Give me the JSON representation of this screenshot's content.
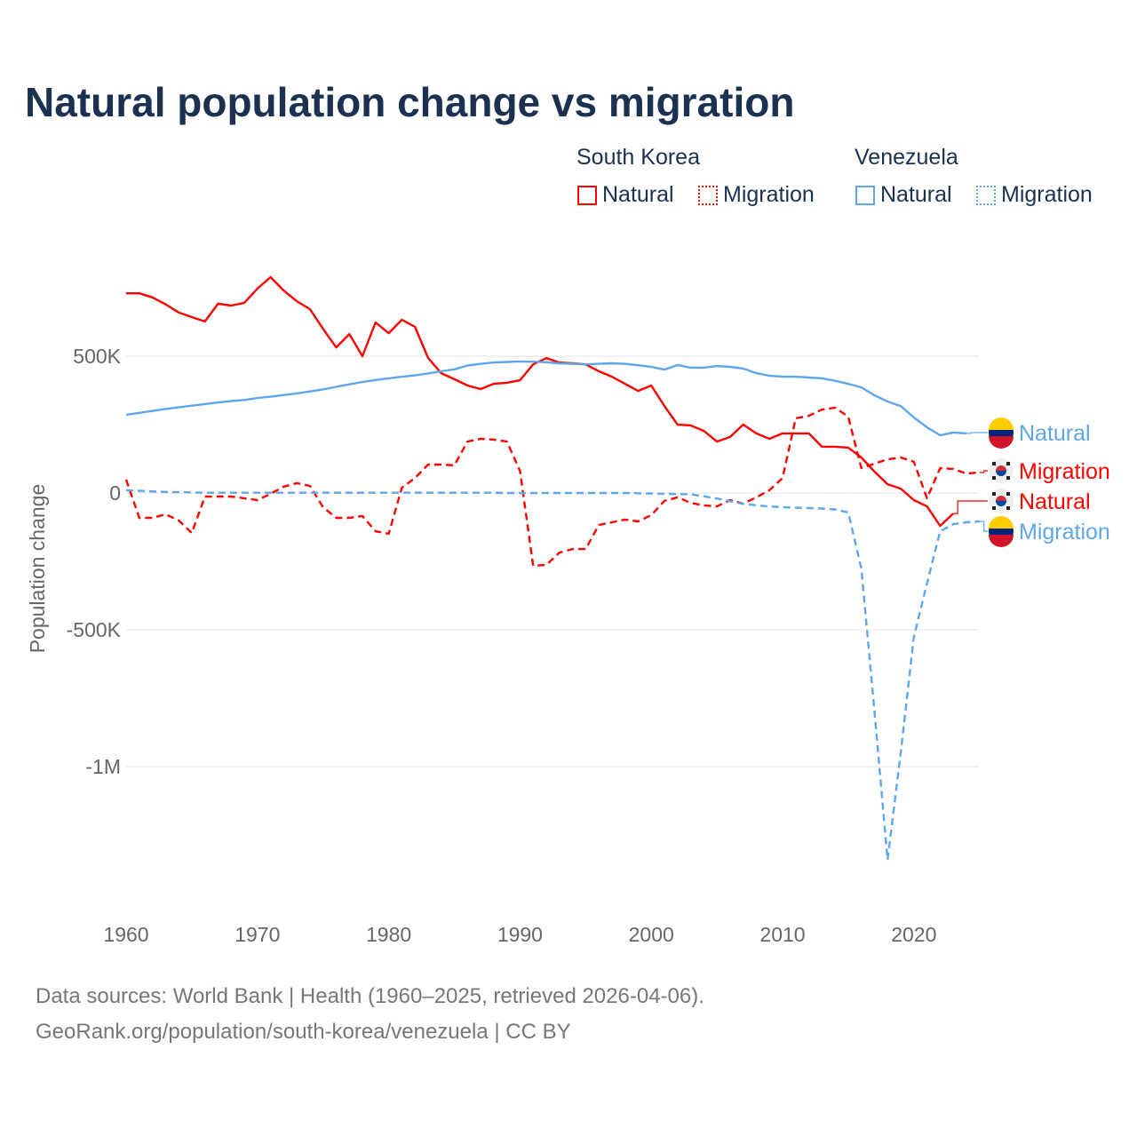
{
  "title": "Natural population change vs migration",
  "legend": {
    "groups": [
      {
        "name": "South Korea",
        "items": [
          "Natural",
          "Migration"
        ]
      },
      {
        "name": "Venezuela",
        "items": [
          "Natural",
          "Migration"
        ]
      }
    ]
  },
  "colors": {
    "south_korea": "#ff0000",
    "venezuela": "#5ea6ea",
    "title": "#1b3152"
  },
  "footer": {
    "line1": "Data sources: World Bank | Health (1960–2025, retrieved 2026-04-06).",
    "line2": "GeoRank.org/population/south-korea/venezuela | CC BY"
  },
  "chart_data": {
    "type": "line",
    "title": "Natural population change vs migration",
    "xlabel": "",
    "ylabel": "Population change",
    "xlim": [
      1960,
      2025
    ],
    "ylim": [
      -1450,
      850
    ],
    "yticks": [
      {
        "v": 500,
        "label": "500K"
      },
      {
        "v": 0,
        "label": "0"
      },
      {
        "v": -500,
        "label": "-500K"
      },
      {
        "v": -1000,
        "label": "-1M"
      }
    ],
    "xticks": [
      1960,
      1970,
      1980,
      1990,
      2000,
      2010,
      2020
    ],
    "units": "thousands",
    "series": [
      {
        "name": "South Korea Natural",
        "end_label": "Natural",
        "color": "#ff0000",
        "dash": false,
        "flag": "kr",
        "x_start": 1960,
        "values": [
          730,
          730,
          715,
          690,
          660,
          643,
          627,
          692,
          685,
          695,
          747,
          789,
          740,
          701,
          672,
          600,
          532,
          581,
          500,
          623,
          584,
          633,
          607,
          494,
          438,
          416,
          393,
          380,
          399,
          403,
          412,
          470,
          493,
          477,
          474,
          470,
          445,
          425,
          399,
          373,
          393,
          318,
          250,
          247,
          227,
          188,
          205,
          250,
          218,
          198,
          218,
          218,
          218,
          169,
          169,
          166,
          130,
          78,
          32,
          16,
          -26,
          -49,
          -120,
          -75
        ]
      },
      {
        "name": "South Korea Migration",
        "end_label": "Migration",
        "color": "#ff0000",
        "dash": true,
        "flag": "kr",
        "x_start": 1960,
        "values": [
          49,
          -91,
          -91,
          -78,
          -100,
          -146,
          -13,
          -13,
          -13,
          -19,
          -26,
          -3,
          23,
          36,
          26,
          -52,
          -91,
          -91,
          -84,
          -140,
          -149,
          19,
          55,
          104,
          104,
          101,
          188,
          198,
          195,
          188,
          81,
          -266,
          -263,
          -218,
          -205,
          -205,
          -117,
          -107,
          -97,
          -104,
          -81,
          -29,
          -16,
          -36,
          -45,
          -49,
          -26,
          -39,
          -16,
          10,
          55,
          273,
          282,
          305,
          312,
          279,
          91,
          107,
          123,
          130,
          114,
          -19,
          91,
          88,
          71,
          75
        ]
      },
      {
        "name": "Venezuela Natural",
        "end_label": "Natural",
        "color": "#5ea6ea",
        "dash": false,
        "flag": "ve",
        "x_start": 1960,
        "values": [
          286,
          293,
          300,
          307,
          313,
          319,
          325,
          331,
          336,
          340,
          347,
          352,
          358,
          364,
          371,
          379,
          388,
          397,
          406,
          413,
          419,
          425,
          430,
          437,
          445,
          452,
          466,
          472,
          477,
          479,
          481,
          480,
          478,
          474,
          472,
          470,
          472,
          474,
          472,
          467,
          461,
          451,
          468,
          458,
          458,
          464,
          461,
          455,
          438,
          429,
          425,
          425,
          422,
          419,
          410,
          399,
          386,
          357,
          334,
          318,
          276,
          240,
          211,
          221,
          218
        ]
      },
      {
        "name": "Venezuela Migration",
        "end_label": "Migration",
        "color": "#5ea6ea",
        "dash": true,
        "flag": "ve",
        "x_start": 1960,
        "values": [
          10,
          8,
          6,
          4,
          3,
          2,
          1,
          1,
          1,
          1,
          1,
          1,
          1,
          1,
          1,
          1,
          1,
          1,
          1,
          1,
          1,
          1,
          1,
          1,
          1,
          1,
          1,
          1,
          1,
          0,
          0,
          0,
          0,
          0,
          0,
          0,
          0,
          0,
          0,
          -1,
          -2,
          -3,
          -4,
          -5,
          -12,
          -20,
          -30,
          -40,
          -45,
          -49,
          -52,
          -54,
          -55,
          -57,
          -60,
          -71,
          -276,
          -800,
          -1341,
          -950,
          -526,
          -330,
          -140,
          -114,
          -107,
          -104
        ]
      }
    ]
  }
}
